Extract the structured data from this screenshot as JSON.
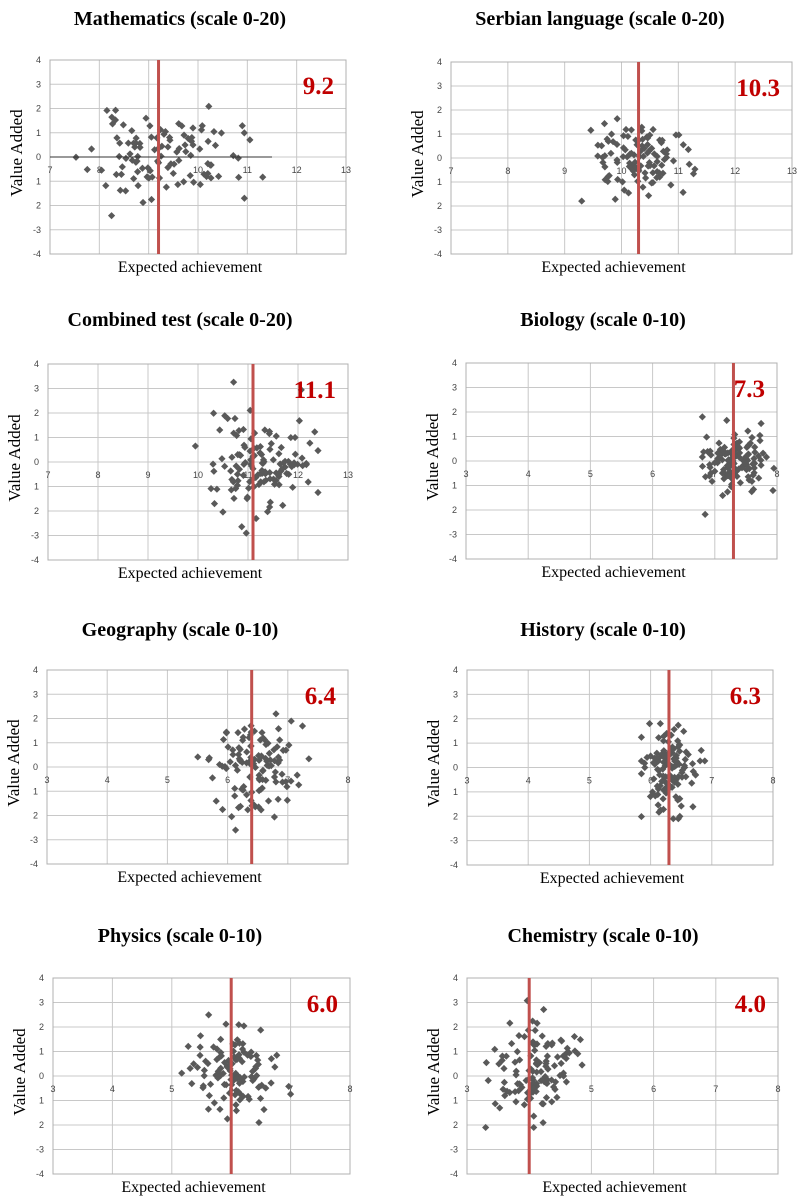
{
  "chart_data": [
    {
      "type": "scatter",
      "title": "Mathematics (scale 0-20)",
      "xlabel": "Expected achievement",
      "ylabel": "Value Added",
      "xlim": [
        7,
        13
      ],
      "ylim": [
        -4,
        4
      ],
      "xticks": [
        "7",
        "8",
        "9",
        "10",
        "11",
        "12",
        "13"
      ],
      "yticks": [
        "4",
        "3",
        "2",
        "1",
        "0",
        "1",
        "2",
        "-3",
        "-4"
      ],
      "reference_line_x": 9.2,
      "annotation": "9.2",
      "seed": 11,
      "scatter": {
        "cx": 9.3,
        "sx": 0.75,
        "cy": 0.0,
        "sy": 0.85,
        "n": 110,
        "xmin": 7.2,
        "xmax": 11.6,
        "ymin": -2.5,
        "ymax": 2.5
      }
    },
    {
      "type": "scatter",
      "title": "Serbian language (scale 0-20)",
      "xlabel": "Expected achievement",
      "ylabel": "Value Added",
      "xlim": [
        7,
        13
      ],
      "ylim": [
        -4,
        4
      ],
      "xticks": [
        "7",
        "8",
        "9",
        "10",
        "11",
        "12",
        "13"
      ],
      "yticks": [
        "4",
        "3",
        "2",
        "1",
        "0",
        "1",
        "2",
        "-3",
        "-4"
      ],
      "reference_line_x": 10.3,
      "annotation": "10.3",
      "seed": 23,
      "scatter": {
        "cx": 10.3,
        "sx": 0.45,
        "cy": 0.0,
        "sy": 0.8,
        "n": 110,
        "xmin": 9.3,
        "xmax": 11.6,
        "ymin": -2.2,
        "ymax": 3.3
      }
    },
    {
      "type": "scatter",
      "title": "Combined test (scale 0-20)",
      "xlabel": "Expected achievement",
      "ylabel": "Value Added",
      "xlim": [
        7,
        13
      ],
      "ylim": [
        -4,
        4
      ],
      "xticks": [
        "7",
        "8",
        "9",
        "10",
        "11",
        "12",
        "13"
      ],
      "yticks": [
        "4",
        "3",
        "2",
        "1",
        "0",
        "1",
        "2",
        "-3",
        "-4"
      ],
      "reference_line_x": 11.1,
      "annotation": "11.1",
      "seed": 37,
      "scatter": {
        "cx": 11.3,
        "sx": 0.5,
        "cy": 0.0,
        "sy": 1.05,
        "n": 130,
        "xmin": 9.8,
        "xmax": 12.4,
        "ymin": -3.6,
        "ymax": 3.3
      }
    },
    {
      "type": "scatter",
      "title": "Biology (scale 0-10)",
      "xlabel": "Expected achievement",
      "ylabel": "Value Added",
      "xlim": [
        3,
        8
      ],
      "ylim": [
        -4,
        4
      ],
      "xticks": [
        "3",
        "4",
        "5",
        "6",
        "7",
        "8"
      ],
      "yticks": [
        "4",
        "3",
        "2",
        "1",
        "0",
        "1",
        "2",
        "-3",
        "-4"
      ],
      "reference_line_x": 7.3,
      "annotation": "7.3",
      "seed": 41,
      "scatter": {
        "cx": 7.35,
        "sx": 0.25,
        "cy": 0.0,
        "sy": 0.65,
        "n": 130,
        "xmin": 6.8,
        "xmax": 7.95,
        "ymin": -2.2,
        "ymax": 1.8
      }
    },
    {
      "type": "scatter",
      "title": "Geography (scale 0-10)",
      "xlabel": "Expected achievement",
      "ylabel": "Value Added",
      "xlim": [
        3,
        8
      ],
      "ylim": [
        -4,
        4
      ],
      "xticks": [
        "3",
        "4",
        "5",
        "6",
        "7",
        "8"
      ],
      "yticks": [
        "4",
        "3",
        "2",
        "1",
        "0",
        "1",
        "2",
        "-3",
        "-4"
      ],
      "reference_line_x": 6.4,
      "annotation": "6.4",
      "seed": 53,
      "scatter": {
        "cx": 6.45,
        "sx": 0.35,
        "cy": 0.0,
        "sy": 0.95,
        "n": 120,
        "xmin": 5.4,
        "xmax": 7.35,
        "ymin": -2.6,
        "ymax": 2.2
      }
    },
    {
      "type": "scatter",
      "title": "History (scale 0-10)",
      "xlabel": "Expected achievement",
      "ylabel": "Value Added",
      "xlim": [
        3,
        8
      ],
      "ylim": [
        -4,
        4
      ],
      "xticks": [
        "3",
        "4",
        "5",
        "6",
        "7",
        "8"
      ],
      "yticks": [
        "4",
        "3",
        "2",
        "1",
        "0",
        "1",
        "2",
        "-3",
        "-4"
      ],
      "reference_line_x": 6.3,
      "annotation": "6.3",
      "seed": 67,
      "scatter": {
        "cx": 6.3,
        "sx": 0.22,
        "cy": 0.0,
        "sy": 0.85,
        "n": 130,
        "xmin": 5.85,
        "xmax": 6.9,
        "ymin": -2.1,
        "ymax": 1.8
      }
    },
    {
      "type": "scatter",
      "title": "Physics (scale 0-10)",
      "xlabel": "Expected achievement",
      "ylabel": "Value Added",
      "xlim": [
        3,
        8
      ],
      "ylim": [
        -4,
        4
      ],
      "xticks": [
        "3",
        "4",
        "5",
        "6",
        "7",
        "8"
      ],
      "yticks": [
        "4",
        "3",
        "2",
        "1",
        "0",
        "1",
        "2",
        "-3",
        "-4"
      ],
      "reference_line_x": 6.0,
      "annotation": "6.0",
      "seed": 79,
      "scatter": {
        "cx": 6.05,
        "sx": 0.35,
        "cy": 0.05,
        "sy": 0.8,
        "n": 120,
        "xmin": 5.1,
        "xmax": 7.0,
        "ymin": -1.9,
        "ymax": 2.9
      }
    },
    {
      "type": "scatter",
      "title": "Chemistry (scale 0-10)",
      "xlabel": "Expected achievement",
      "ylabel": "Value Added",
      "xlim": [
        3,
        8
      ],
      "ylim": [
        -4,
        4
      ],
      "xticks": [
        "3",
        "4",
        "5",
        "6",
        "7",
        "8"
      ],
      "yticks": [
        "4",
        "3",
        "2",
        "1",
        "0",
        "1",
        "2",
        "-3",
        "-4"
      ],
      "reference_line_x": 4.0,
      "annotation": "4.0",
      "seed": 97,
      "scatter": {
        "cx": 4.05,
        "sx": 0.35,
        "cy": 0.2,
        "sy": 1.05,
        "n": 120,
        "xmin": 3.3,
        "xmax": 4.85,
        "ymin": -2.1,
        "ymax": 3.5
      }
    }
  ]
}
